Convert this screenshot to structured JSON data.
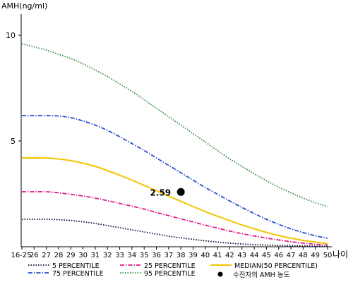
{
  "chart_data": {
    "type": "line",
    "ylabel": "AMH(ng/ml)",
    "xlabel": "나이",
    "x": [
      "16-25",
      "26",
      "27",
      "28",
      "29",
      "30",
      "31",
      "32",
      "33",
      "34",
      "35",
      "36",
      "37",
      "38",
      "39",
      "40",
      "41",
      "42",
      "43",
      "44",
      "45",
      "46",
      "47",
      "48",
      "49",
      "50"
    ],
    "y_ticks": [
      "5",
      "10"
    ],
    "ylim": [
      0,
      11
    ],
    "grid": false,
    "legend_position": "bottom",
    "series": [
      {
        "name": "5 PERCENTILE",
        "color": "#0d0d3a",
        "style": "dotted",
        "values": [
          1.3,
          1.3,
          1.3,
          1.28,
          1.24,
          1.18,
          1.1,
          1.0,
          0.9,
          0.8,
          0.7,
          0.6,
          0.5,
          0.42,
          0.35,
          0.28,
          0.22,
          0.17,
          0.13,
          0.1,
          0.08,
          0.06,
          0.05,
          0.04,
          0.03,
          0.02
        ]
      },
      {
        "name": "25 PERCENTILE",
        "color": "#e0198c",
        "style": "dashdot",
        "values": [
          2.6,
          2.6,
          2.6,
          2.55,
          2.48,
          2.4,
          2.3,
          2.18,
          2.05,
          1.92,
          1.78,
          1.62,
          1.47,
          1.32,
          1.17,
          1.02,
          0.88,
          0.74,
          0.62,
          0.51,
          0.41,
          0.32,
          0.24,
          0.17,
          0.12,
          0.08
        ]
      },
      {
        "name": "MEDIAN(50 PERCENTILE)",
        "color": "#f2c400",
        "style": "solid",
        "values": [
          4.2,
          4.2,
          4.2,
          4.15,
          4.07,
          3.95,
          3.8,
          3.6,
          3.38,
          3.15,
          2.9,
          2.65,
          2.4,
          2.15,
          1.9,
          1.66,
          1.44,
          1.23,
          1.03,
          0.85,
          0.68,
          0.53,
          0.41,
          0.3,
          0.22,
          0.15
        ]
      },
      {
        "name": "75 PERCENTILE",
        "color": "#2a4fd0",
        "style": "dashdot",
        "values": [
          6.2,
          6.2,
          6.2,
          6.18,
          6.1,
          5.95,
          5.75,
          5.5,
          5.2,
          4.88,
          4.55,
          4.2,
          3.85,
          3.5,
          3.15,
          2.8,
          2.48,
          2.16,
          1.86,
          1.57,
          1.3,
          1.06,
          0.85,
          0.67,
          0.52,
          0.4
        ]
      },
      {
        "name": "95 PERCENTILE",
        "color": "#2e8b3e",
        "style": "dotted",
        "values": [
          9.6,
          9.45,
          9.3,
          9.1,
          8.9,
          8.65,
          8.35,
          8.05,
          7.7,
          7.35,
          6.95,
          6.55,
          6.15,
          5.75,
          5.35,
          4.95,
          4.55,
          4.15,
          3.8,
          3.45,
          3.12,
          2.82,
          2.55,
          2.3,
          2.08,
          1.9
        ]
      }
    ],
    "points": [
      {
        "name": "수진자의 AMH 농도",
        "x": "38",
        "y": 2.59,
        "label": "2.59",
        "color": "#000000"
      }
    ]
  }
}
